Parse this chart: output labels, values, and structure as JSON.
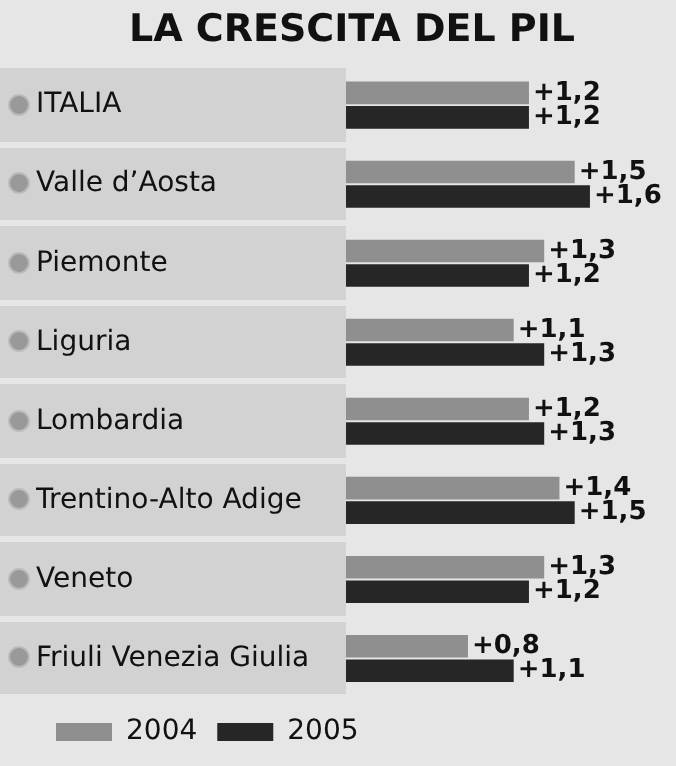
{
  "chart_data": {
    "type": "bar",
    "orientation": "horizontal",
    "title": "LA CRESCITA DEL PIL",
    "categories": [
      "ITALIA",
      "Valle d’Aosta",
      "Piemonte",
      "Liguria",
      "Lombardia",
      "Trentino-Alto Adige",
      "Veneto",
      "Friuli Venezia Giulia"
    ],
    "series": [
      {
        "name": "2004",
        "color": "#8f8f8f",
        "values": [
          1.2,
          1.5,
          1.3,
          1.1,
          1.2,
          1.4,
          1.3,
          0.8
        ],
        "value_labels": [
          "+1,2",
          "+1,5",
          "+1,3",
          "+1,1",
          "+1,2",
          "+1,4",
          "+1,3",
          "+0,8"
        ]
      },
      {
        "name": "2005",
        "color": "#262626",
        "values": [
          1.2,
          1.6,
          1.2,
          1.3,
          1.3,
          1.5,
          1.2,
          1.1
        ],
        "value_labels": [
          "+1,2",
          "+1,6",
          "+1,2",
          "+1,3",
          "+1,3",
          "+1,5",
          "+1,2",
          "+1,1"
        ]
      }
    ],
    "grid": false,
    "legend": "bottom left"
  }
}
